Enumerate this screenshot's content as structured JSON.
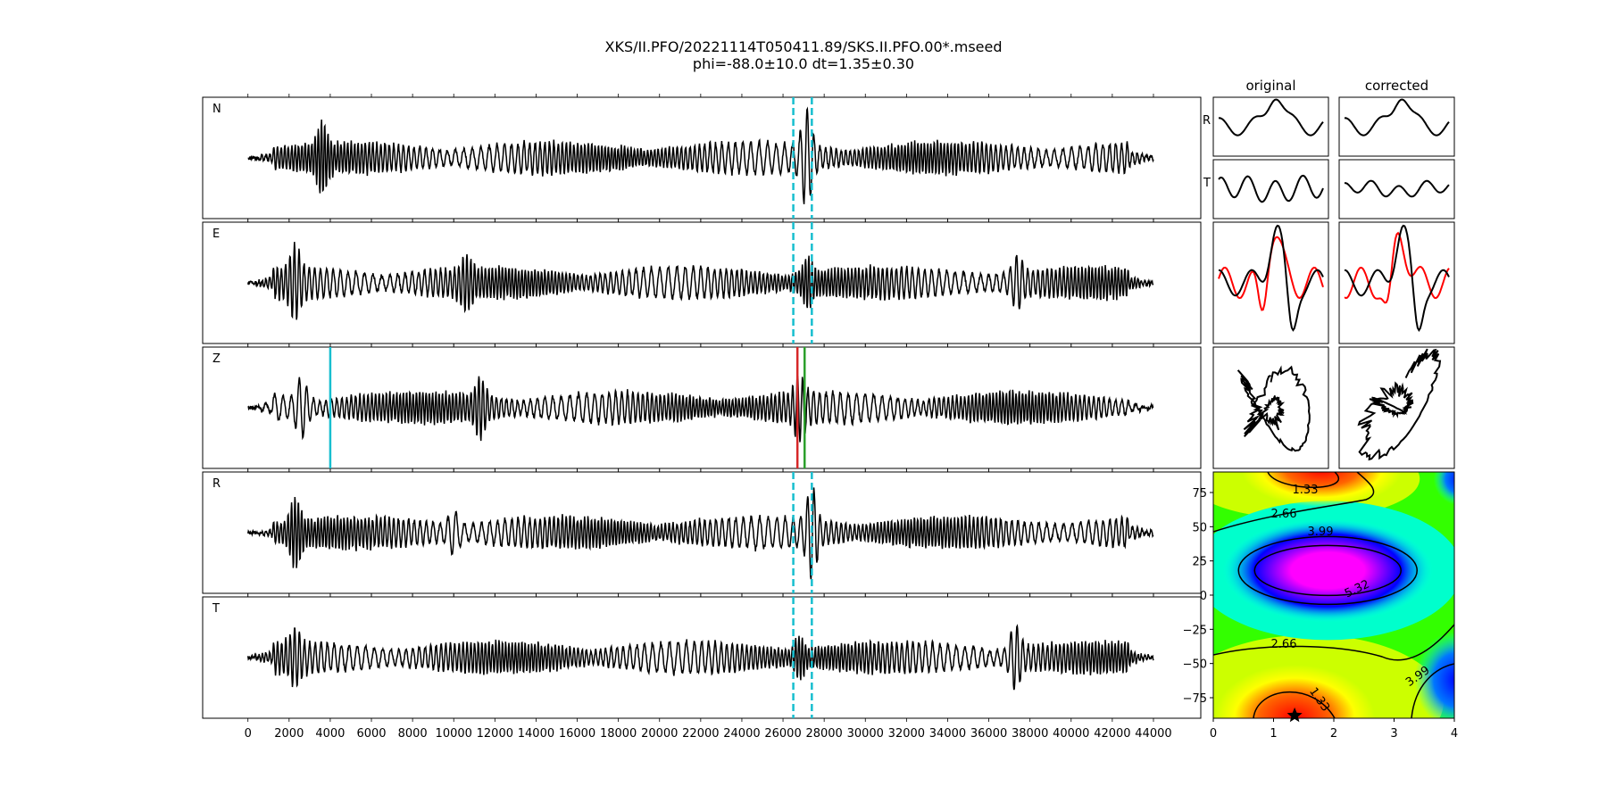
{
  "figure": {
    "title_line1": "XKS/II.PFO/20221114T050411.89/SKS.II.PFO.00*.mseed",
    "title_line2": "phi=-88.0±10.0 dt=1.35±0.30"
  },
  "chart_data": [
    {
      "type": "line",
      "name": "waveforms",
      "x_ticks": [
        0,
        2000,
        4000,
        6000,
        8000,
        10000,
        12000,
        14000,
        16000,
        18000,
        20000,
        22000,
        24000,
        26000,
        28000,
        30000,
        32000,
        34000,
        36000,
        38000,
        40000,
        42000,
        44000
      ],
      "xlim": [
        -2200,
        46300
      ],
      "panels": [
        {
          "label": "N",
          "markers": [
            {
              "x": 26500,
              "color": "#17becf",
              "style": "dashed"
            },
            {
              "x": 27400,
              "color": "#17becf",
              "style": "dashed"
            }
          ]
        },
        {
          "label": "E",
          "markers": [
            {
              "x": 26500,
              "color": "#17becf",
              "style": "dashed"
            },
            {
              "x": 27400,
              "color": "#17becf",
              "style": "dashed"
            }
          ]
        },
        {
          "label": "Z",
          "markers": [
            {
              "x": 4000,
              "color": "#17becf",
              "style": "solid"
            },
            {
              "x": 26700,
              "color": "#d62728",
              "style": "solid"
            },
            {
              "x": 27050,
              "color": "#2ca02c",
              "style": "solid"
            }
          ]
        },
        {
          "label": "R",
          "markers": [
            {
              "x": 26500,
              "color": "#17becf",
              "style": "dashed"
            },
            {
              "x": 27400,
              "color": "#17becf",
              "style": "dashed"
            }
          ]
        },
        {
          "label": "T",
          "markers": [
            {
              "x": 26500,
              "color": "#17becf",
              "style": "dashed"
            },
            {
              "x": 27400,
              "color": "#17becf",
              "style": "dashed"
            }
          ]
        }
      ],
      "trace_color": "#000000"
    },
    {
      "type": "line",
      "name": "particle-motion",
      "column_titles": [
        "original",
        "corrected"
      ],
      "row_labels": [
        "R",
        "T"
      ],
      "colors": {
        "trace": "#000000",
        "overlay": "#ff0000"
      }
    },
    {
      "type": "heatmap",
      "name": "splitting-grid",
      "x_ticks": [
        0,
        1,
        2,
        3,
        4
      ],
      "y_ticks": [
        75,
        50,
        25,
        0,
        -25,
        -50,
        -75
      ],
      "xlim": [
        0,
        4
      ],
      "ylim": [
        -90,
        90
      ],
      "contour_labels": [
        "1.33",
        "2.66",
        "3.99",
        "5.32",
        "2.66",
        "3.99",
        "1.33"
      ],
      "best_fit": {
        "dt": 1.35,
        "phi": -88.0
      },
      "colormap": [
        "#ff0000",
        "#ffff00",
        "#00ff00",
        "#00ffff",
        "#0000ff",
        "#ff00ff"
      ]
    }
  ]
}
